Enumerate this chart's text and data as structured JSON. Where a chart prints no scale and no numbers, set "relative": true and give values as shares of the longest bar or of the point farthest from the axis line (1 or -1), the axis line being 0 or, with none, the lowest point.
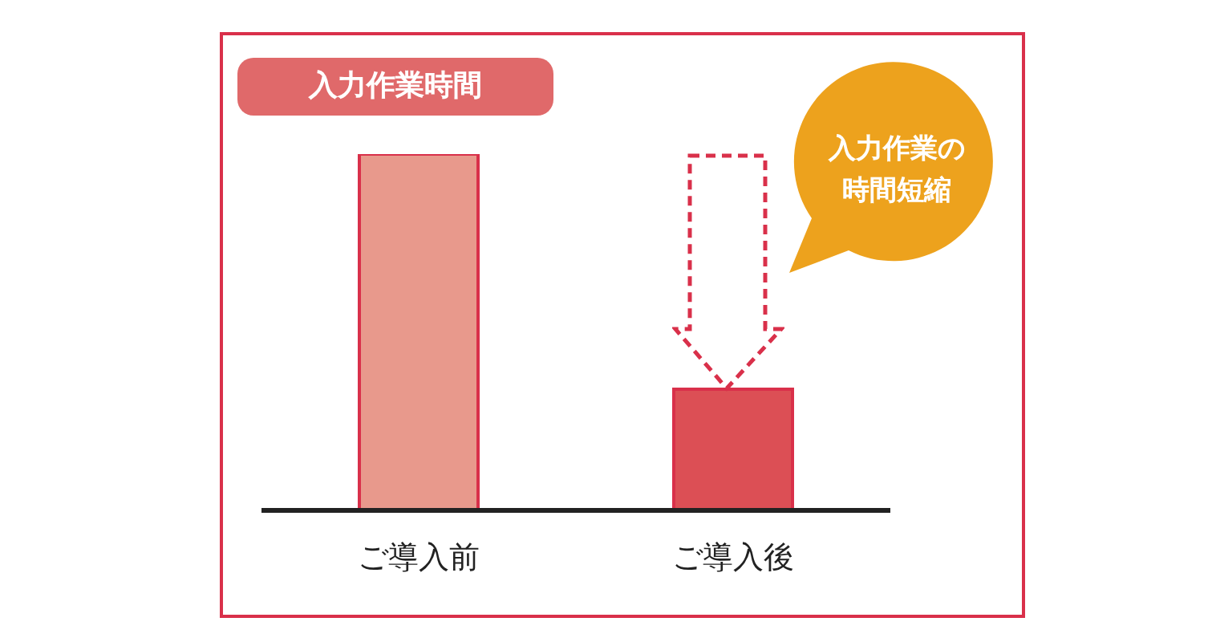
{
  "chart_data": {
    "type": "bar",
    "title": "入力作業時間",
    "categories": [
      "ご導入前",
      "ご導入後"
    ],
    "relative": true,
    "values": [
      1,
      0.34
    ],
    "colors": [
      "#e8998c",
      "#dc4f55"
    ],
    "annotations": [
      "入力作業の時間短縮"
    ],
    "grid": false,
    "legend": false
  }
}
